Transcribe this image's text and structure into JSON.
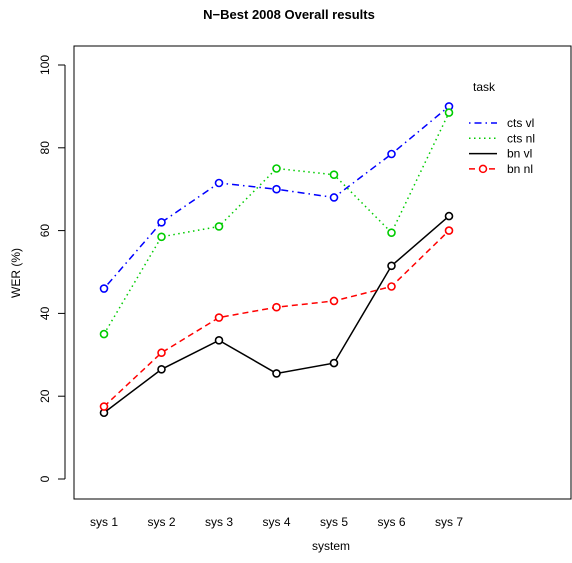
{
  "chart_data": {
    "type": "line",
    "title": "N−Best 2008 Overall results",
    "xlabel": "system",
    "ylabel": "WER (%)",
    "ylim": [
      0,
      100
    ],
    "yticks": [
      0,
      20,
      40,
      60,
      80,
      100
    ],
    "categories": [
      "sys 1",
      "sys 2",
      "sys 3",
      "sys 4",
      "sys 5",
      "sys 6",
      "sys 7"
    ],
    "legend": {
      "title": "task",
      "placement": "top-right"
    },
    "series": [
      {
        "name": "cts vl",
        "color": "#0000ff",
        "dash": "dotdash",
        "values": [
          46.0,
          62.0,
          71.5,
          70.0,
          68.0,
          78.5,
          90.0
        ]
      },
      {
        "name": "cts nl",
        "color": "#00cc00",
        "dash": "dotted",
        "values": [
          35.0,
          58.5,
          61.0,
          75.0,
          73.5,
          59.5,
          88.5
        ]
      },
      {
        "name": "bn vl",
        "color": "#000000",
        "dash": "solid",
        "values": [
          16.0,
          26.5,
          33.5,
          25.5,
          28.0,
          51.5,
          63.5
        ]
      },
      {
        "name": "bn nl",
        "color": "#ff0000",
        "dash": "dashed",
        "values": [
          17.5,
          30.5,
          39.0,
          41.5,
          43.0,
          46.5,
          60.0
        ]
      }
    ]
  }
}
